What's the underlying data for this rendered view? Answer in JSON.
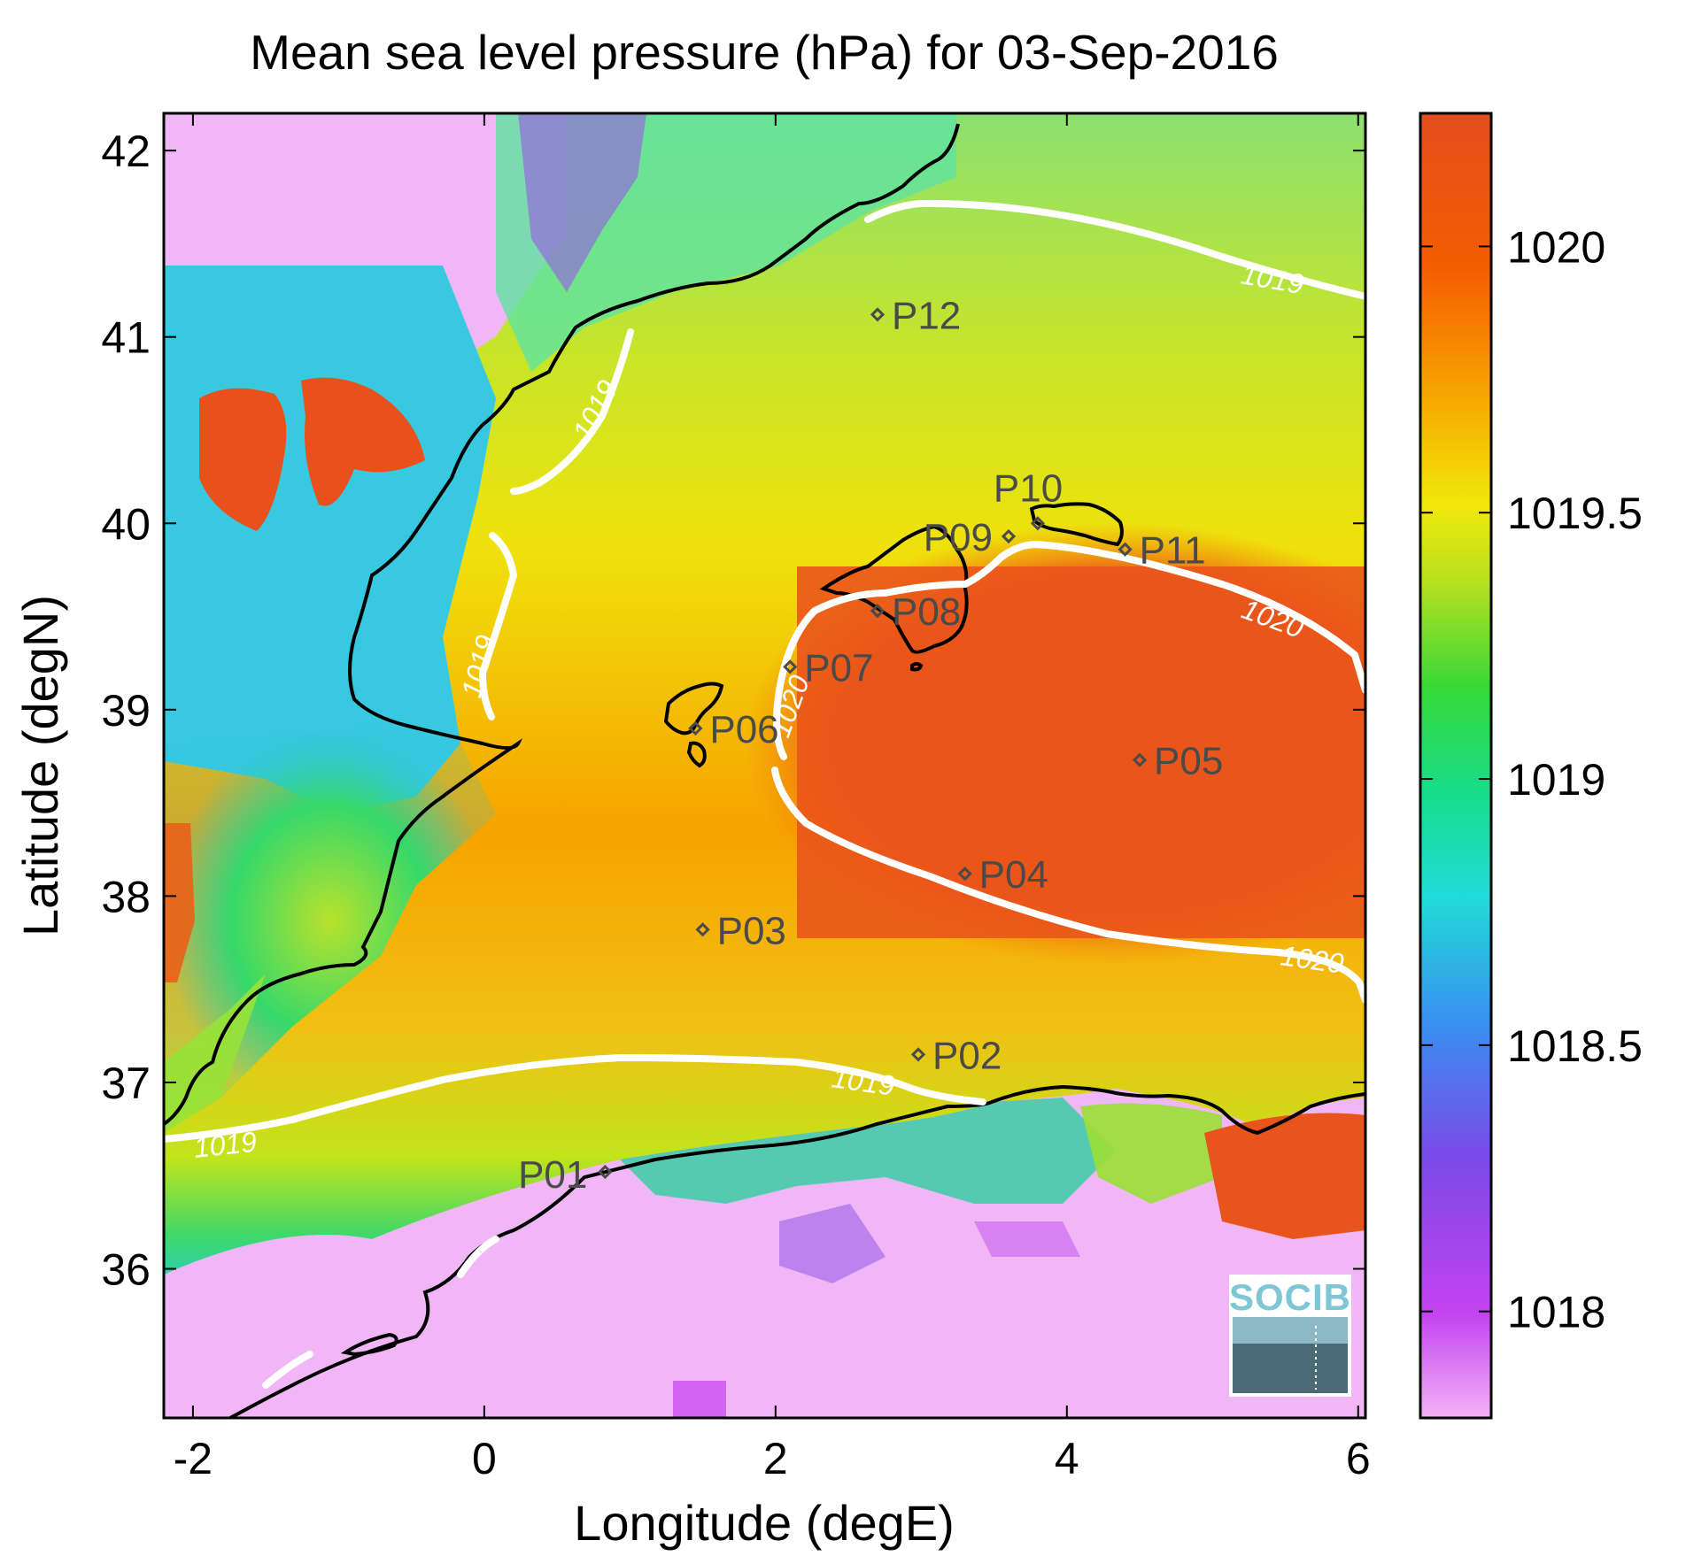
{
  "title": "Mean sea level pressure (hPa) for 03-Sep-2016",
  "xlabel": "Longitude (degE)",
  "ylabel": "Latitude (degN)",
  "map": {
    "xlim": [
      -2.2,
      6.05
    ],
    "ylim": [
      35.2,
      42.2
    ],
    "xticks": [
      -2,
      0,
      2,
      4,
      6
    ],
    "xtick_labels": [
      "-2",
      "0",
      "2",
      "4",
      "6"
    ],
    "yticks": [
      36,
      37,
      38,
      39,
      40,
      41,
      42
    ],
    "ytick_labels": [
      "36",
      "37",
      "38",
      "39",
      "40",
      "41",
      "42"
    ],
    "colormap": "magenta-blue-cyan-green-yellow-orange-red",
    "coastline_color": "#000000",
    "contour_color": "#ffffff"
  },
  "colorbar": {
    "range": [
      1017.8,
      1020.25
    ],
    "ticks": [
      1018,
      1018.5,
      1019,
      1019.5,
      1020
    ],
    "tick_labels": [
      "1018",
      "1018.5",
      "1019",
      "1019.5",
      "1020"
    ]
  },
  "contours": [
    {
      "level": 1019,
      "label": "1019"
    },
    {
      "level": 1020,
      "label": "1020"
    }
  ],
  "stations": [
    {
      "id": "P01",
      "lon": 0.83,
      "lat": 36.52
    },
    {
      "id": "P02",
      "lon": 2.98,
      "lat": 37.15
    },
    {
      "id": "P03",
      "lon": 1.5,
      "lat": 37.82
    },
    {
      "id": "P04",
      "lon": 3.3,
      "lat": 38.12
    },
    {
      "id": "P05",
      "lon": 4.5,
      "lat": 38.73
    },
    {
      "id": "P06",
      "lon": 1.45,
      "lat": 38.9
    },
    {
      "id": "P07",
      "lon": 2.1,
      "lat": 39.23
    },
    {
      "id": "P08",
      "lon": 2.7,
      "lat": 39.53
    },
    {
      "id": "P09",
      "lon": 3.6,
      "lat": 39.93
    },
    {
      "id": "P10",
      "lon": 3.8,
      "lat": 40.0
    },
    {
      "id": "P11",
      "lon": 4.4,
      "lat": 39.86
    },
    {
      "id": "P12",
      "lon": 2.7,
      "lat": 41.12
    }
  ],
  "logo": "SOCIB"
}
